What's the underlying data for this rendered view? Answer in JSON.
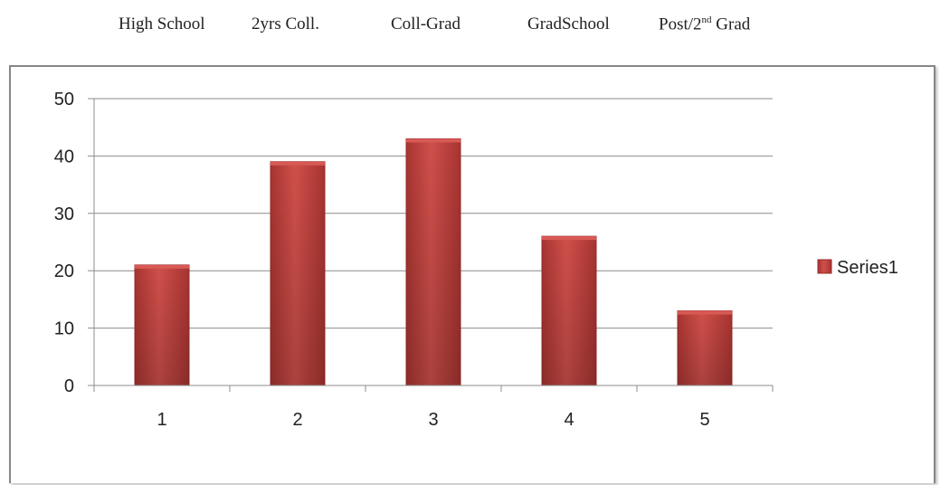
{
  "header": {
    "categories": [
      {
        "text": "High School"
      },
      {
        "text": "2yrs Coll."
      },
      {
        "text": "Coll-Grad"
      },
      {
        "text": "GradSchool"
      },
      {
        "text": "Post/2",
        "sup": "nd",
        "after": " Grad"
      }
    ]
  },
  "chart_data": {
    "type": "bar",
    "categories": [
      "1",
      "2",
      "3",
      "4",
      "5"
    ],
    "series": [
      {
        "name": "Series1",
        "values": [
          21,
          39,
          43,
          26,
          13
        ]
      }
    ],
    "ylim": [
      0,
      50
    ],
    "yticks": [
      0,
      10,
      20,
      30,
      40,
      50
    ],
    "grid": true,
    "legend": "right",
    "colors": {
      "bar": "#c0403c",
      "bar_dark": "#962b29",
      "bar_top": "#d85a55",
      "grid": "#8c8c8c",
      "axis": "#8c8c8c"
    }
  }
}
